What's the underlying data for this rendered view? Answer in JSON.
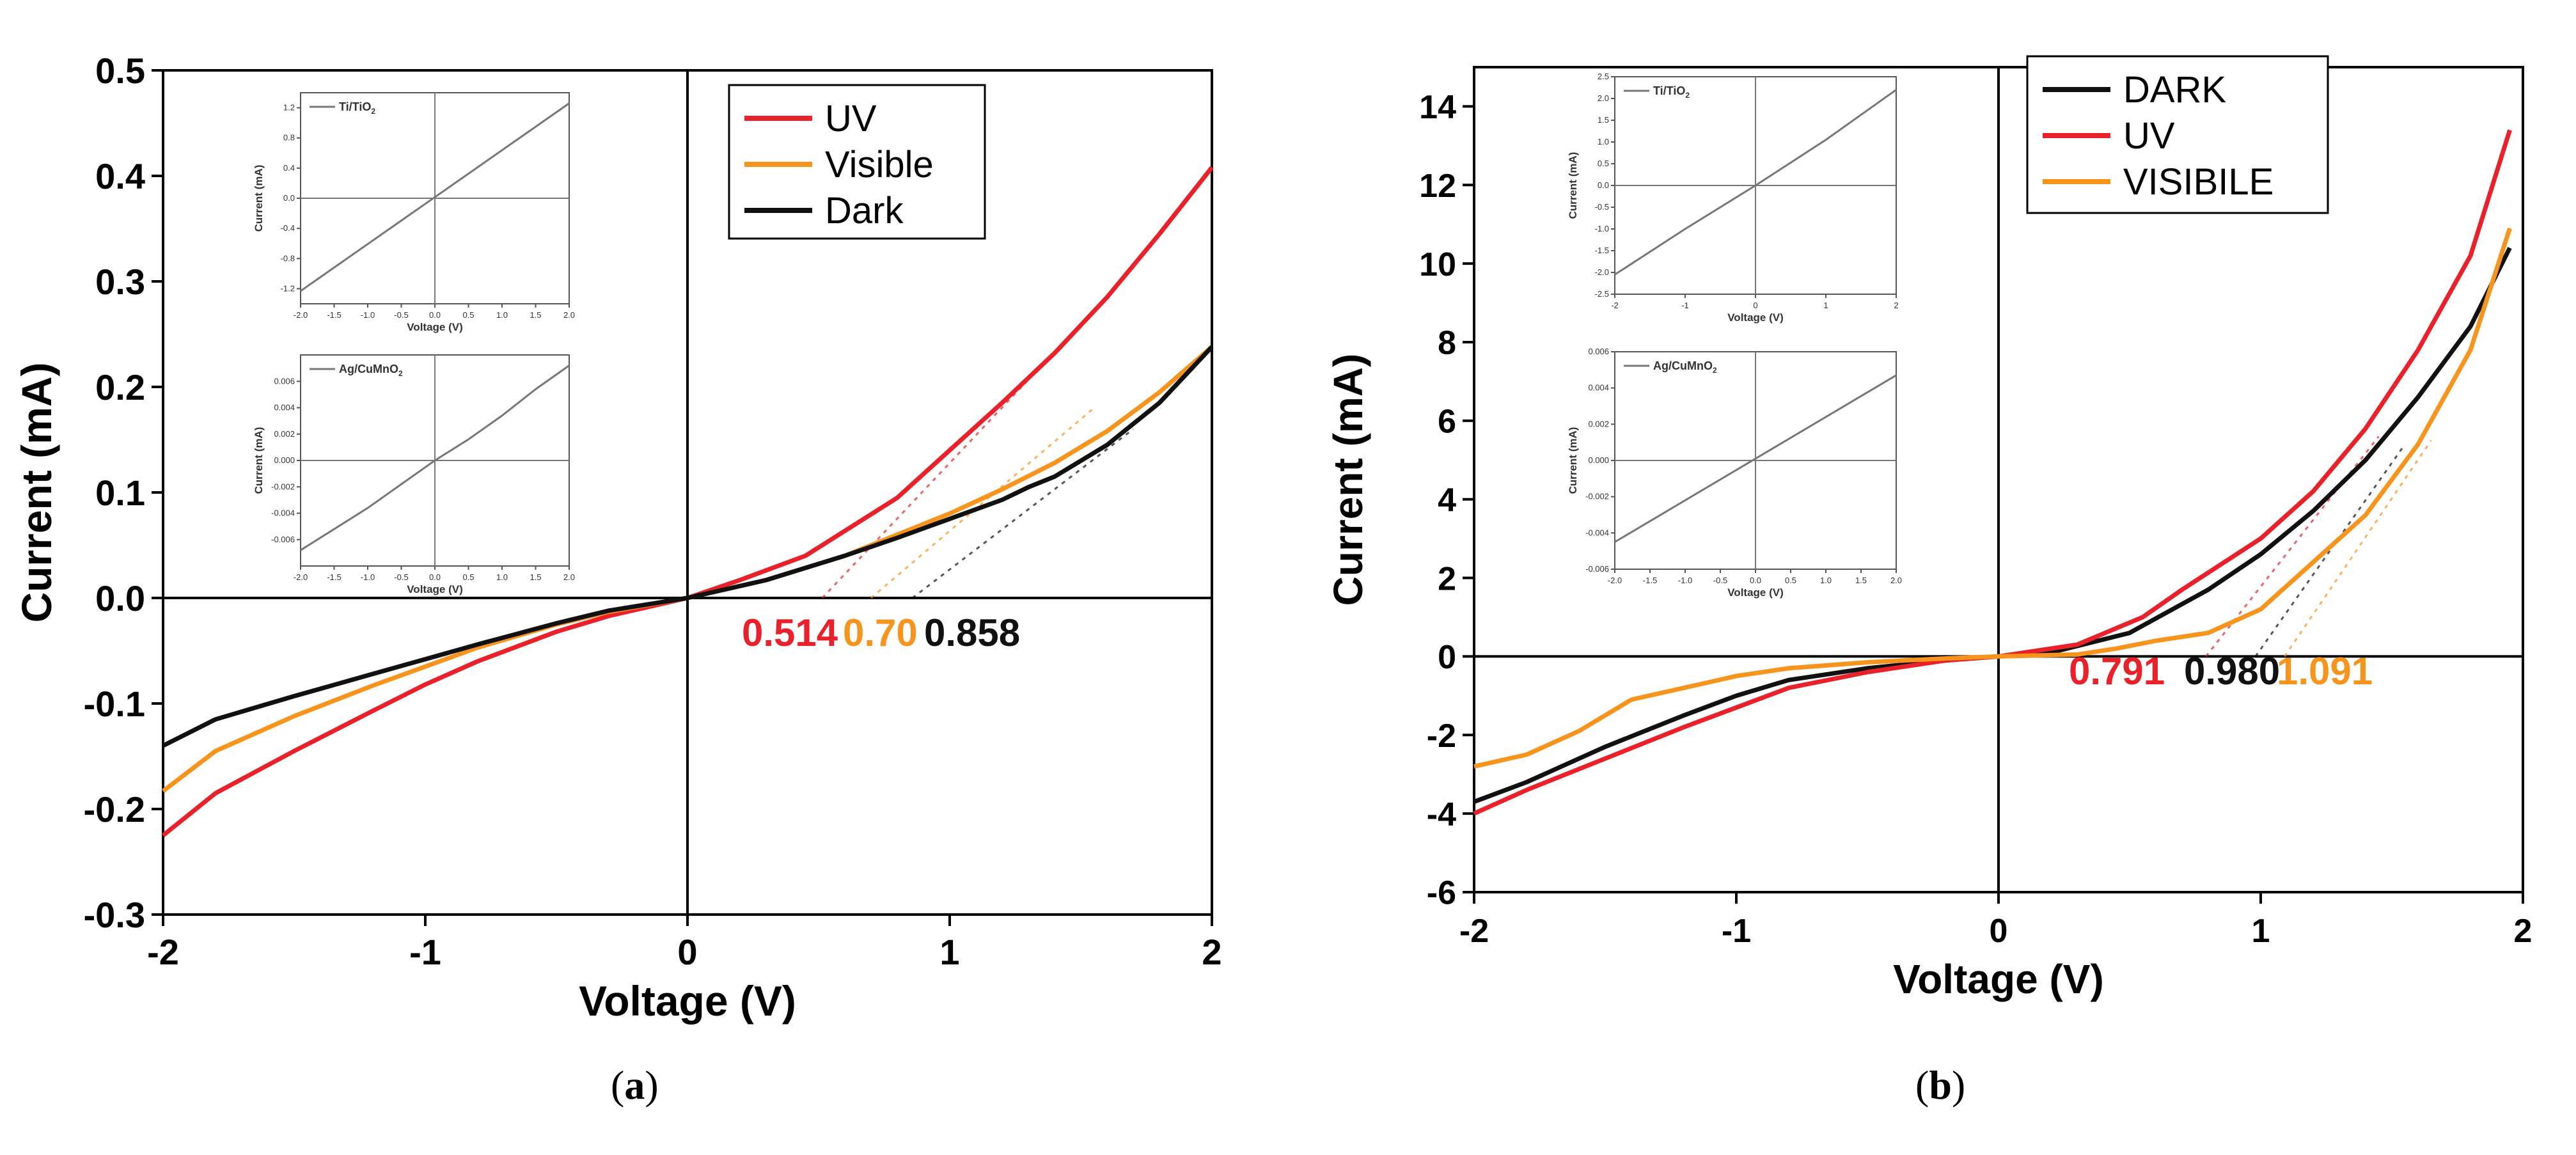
{
  "colors": {
    "uv": "#e8212b",
    "visible": "#f7941d",
    "dark": "#111111",
    "inset": "#777777"
  },
  "captions": {
    "a": "a",
    "b": "b"
  },
  "chart_data": [
    {
      "id": "a",
      "type": "line",
      "xlabel": "Voltage (V)",
      "ylabel": "Current (mA)",
      "xlim": [
        -2,
        2
      ],
      "ylim": [
        -0.3,
        0.5
      ],
      "xticks": [
        -2,
        -1,
        0,
        1,
        2
      ],
      "xtick_labels": [
        "-2",
        "-1",
        "0",
        "1",
        "2"
      ],
      "yticks": [
        -0.3,
        -0.2,
        -0.1,
        0,
        0.1,
        0.2,
        0.3,
        0.4,
        0.5
      ],
      "ytick_labels": [
        "-0.3",
        "-0.2",
        "-0.1",
        "0.0",
        "0.1",
        "0.2",
        "0.3",
        "0.4",
        "0.5"
      ],
      "legend_position": "top-right",
      "series": [
        {
          "name": "UV",
          "color_key": "uv",
          "x": [
            -2,
            -1.8,
            -1.5,
            -1.2,
            -1.0,
            -0.8,
            -0.5,
            -0.3,
            0,
            0.2,
            0.45,
            0.8,
            1.0,
            1.2,
            1.4,
            1.6,
            1.8,
            2.0
          ],
          "y": [
            -0.225,
            -0.185,
            -0.145,
            -0.107,
            -0.082,
            -0.06,
            -0.032,
            -0.017,
            0,
            0.017,
            0.04,
            0.095,
            0.14,
            0.185,
            0.232,
            0.285,
            0.345,
            0.408
          ]
        },
        {
          "name": "Visible",
          "color_key": "visible",
          "x": [
            -2,
            -1.8,
            -1.5,
            -1.2,
            -1.0,
            -0.8,
            -0.5,
            -0.3,
            0,
            0.3,
            0.6,
            0.8,
            1.0,
            1.2,
            1.4,
            1.6,
            1.8,
            2.0
          ],
          "y": [
            -0.183,
            -0.145,
            -0.112,
            -0.083,
            -0.065,
            -0.047,
            -0.025,
            -0.013,
            0,
            0.017,
            0.04,
            0.06,
            0.08,
            0.103,
            0.128,
            0.158,
            0.195,
            0.238
          ]
        },
        {
          "name": "Dark",
          "color_key": "dark",
          "x": [
            -2,
            -1.8,
            -1.5,
            -1.2,
            -1.0,
            -0.8,
            -0.5,
            -0.3,
            0,
            0.3,
            0.6,
            0.8,
            1.0,
            1.2,
            1.3,
            1.4,
            1.6,
            1.8,
            2.0
          ],
          "y": [
            -0.14,
            -0.115,
            -0.093,
            -0.072,
            -0.058,
            -0.044,
            -0.024,
            -0.012,
            0,
            0.017,
            0.04,
            0.057,
            0.075,
            0.093,
            0.105,
            0.115,
            0.145,
            0.185,
            0.238
          ]
        }
      ],
      "tangents": [
        {
          "color_key": "uv",
          "x0": 0.514,
          "x1": 1.35,
          "y1": 0.22
        },
        {
          "color_key": "visible",
          "x0": 0.7,
          "x1": 1.55,
          "y1": 0.18
        },
        {
          "color_key": "dark",
          "x0": 0.858,
          "x1": 1.7,
          "y1": 0.16
        }
      ],
      "annotations": [
        {
          "text": "0.514",
          "color_key": "uv"
        },
        {
          "text": "0.70",
          "color_key": "visible"
        },
        {
          "text": "0.858",
          "color_key": "dark"
        }
      ],
      "insets": [
        {
          "label": "Ti/TiO",
          "label_sub": "2",
          "xlabel": "Voltage (V)",
          "ylabel": "Current (mA)",
          "xlim": [
            -2,
            2
          ],
          "ylim": [
            -1.4,
            1.4
          ],
          "xticks": [
            -2,
            -1.5,
            -1,
            -0.5,
            0,
            0.5,
            1,
            1.5,
            2
          ],
          "xtick_labels": [
            "-2.0",
            "-1.5",
            "-1.0",
            "-0.5",
            "0.0",
            "0.5",
            "1.0",
            "1.5",
            "2.0"
          ],
          "yticks": [
            -1.2,
            -0.8,
            -0.4,
            0,
            0.4,
            0.8,
            1.2
          ],
          "ytick_labels": [
            "-1.2",
            "-0.8",
            "-0.4",
            "0.0",
            "0.4",
            "0.8",
            "1.2"
          ],
          "x": [
            -2,
            2
          ],
          "y": [
            -1.23,
            1.26
          ]
        },
        {
          "label": "Ag/CuMnO",
          "label_sub": "2",
          "xlabel": "Voltage (V)",
          "ylabel": "Current (mA)",
          "xlim": [
            -2,
            2
          ],
          "ylim": [
            -0.008,
            0.008
          ],
          "xticks": [
            -2,
            -1.5,
            -1,
            -0.5,
            0,
            0.5,
            1,
            1.5,
            2
          ],
          "xtick_labels": [
            "-2.0",
            "-1.5",
            "-1.0",
            "-0.5",
            "0.0",
            "0.5",
            "1.0",
            "1.5",
            "2.0"
          ],
          "yticks": [
            -0.006,
            -0.004,
            -0.002,
            0,
            0.002,
            0.004,
            0.006
          ],
          "ytick_labels": [
            "-0.006",
            "-0.004",
            "-0.002",
            "0.000",
            "0.002",
            "0.004",
            "0.006"
          ],
          "x": [
            -2,
            -1.5,
            -1,
            -0.5,
            0,
            0.5,
            1,
            1.5,
            2
          ],
          "y": [
            -0.0068,
            -0.0052,
            -0.0036,
            -0.0018,
            0,
            0.0016,
            0.0034,
            0.0054,
            0.0072
          ]
        }
      ]
    },
    {
      "id": "b",
      "type": "line",
      "xlabel": "Voltage (V)",
      "ylabel": "Current (mA)",
      "xlim": [
        -2,
        2
      ],
      "ylim": [
        -6,
        15
      ],
      "xticks": [
        -2,
        -1,
        0,
        1,
        2
      ],
      "xtick_labels": [
        "-2",
        "-1",
        "0",
        "1",
        "2"
      ],
      "yticks": [
        -6,
        -4,
        -2,
        0,
        2,
        4,
        6,
        8,
        10,
        12,
        14
      ],
      "ytick_labels": [
        "-6",
        "-4",
        "-2",
        "0",
        "2",
        "4",
        "6",
        "8",
        "10",
        "12",
        "14"
      ],
      "legend_position": "top-right",
      "series": [
        {
          "name": "DARK",
          "color_key": "dark",
          "x": [
            -2,
            -1.8,
            -1.5,
            -1.2,
            -1.0,
            -0.8,
            -0.5,
            -0.2,
            0,
            0.2,
            0.5,
            0.8,
            1.0,
            1.2,
            1.4,
            1.6,
            1.8,
            1.95
          ],
          "y": [
            -3.7,
            -3.2,
            -2.3,
            -1.5,
            -1.0,
            -0.6,
            -0.3,
            -0.1,
            0,
            0.1,
            0.6,
            1.7,
            2.6,
            3.7,
            5.0,
            6.6,
            8.4,
            10.4
          ]
        },
        {
          "name": "UV",
          "color_key": "uv",
          "x": [
            -2,
            -1.8,
            -1.5,
            -1.2,
            -1.0,
            -0.8,
            -0.5,
            -0.2,
            0,
            0.3,
            0.55,
            0.7,
            1.0,
            1.2,
            1.4,
            1.6,
            1.8,
            1.95
          ],
          "y": [
            -4.0,
            -3.4,
            -2.6,
            -1.8,
            -1.3,
            -0.8,
            -0.4,
            -0.1,
            0,
            0.3,
            1.0,
            1.7,
            3.0,
            4.2,
            5.8,
            7.8,
            10.2,
            13.4
          ]
        },
        {
          "name": "VISIBILE",
          "color_key": "visible",
          "x": [
            -2,
            -1.8,
            -1.6,
            -1.4,
            -1.2,
            -1.0,
            -0.8,
            -0.5,
            -0.2,
            0,
            0.3,
            0.45,
            0.6,
            0.8,
            1.0,
            1.1,
            1.2,
            1.4,
            1.6,
            1.8,
            1.95
          ],
          "y": [
            -2.8,
            -2.5,
            -1.9,
            -1.1,
            -0.8,
            -0.5,
            -0.3,
            -0.15,
            -0.05,
            0,
            0.05,
            0.2,
            0.4,
            0.6,
            1.2,
            1.8,
            2.4,
            3.6,
            5.4,
            7.8,
            10.9
          ]
        }
      ],
      "tangents": [
        {
          "color_key": "uv",
          "x0": 0.791,
          "x1": 1.45,
          "y1": 5.6
        },
        {
          "color_key": "dark",
          "x0": 0.98,
          "x1": 1.55,
          "y1": 5.4
        },
        {
          "color_key": "visible",
          "x0": 1.091,
          "x1": 1.65,
          "y1": 5.5
        }
      ],
      "annotations": [
        {
          "text": "0.791",
          "color_key": "uv"
        },
        {
          "text": "0.980",
          "color_key": "dark"
        },
        {
          "text": "1.091",
          "color_key": "visible"
        }
      ],
      "insets": [
        {
          "label": "Ti/TiO",
          "label_sub": "2",
          "xlabel": "Voltage (V)",
          "ylabel": "Current (mA)",
          "xlim": [
            -2,
            2
          ],
          "ylim": [
            -2.5,
            2.5
          ],
          "xticks": [
            -2,
            -1,
            0,
            1,
            2
          ],
          "xtick_labels": [
            "-2",
            "-1",
            "0",
            "1",
            "2"
          ],
          "yticks": [
            -2.5,
            -2,
            -1.5,
            -1,
            -0.5,
            0,
            0.5,
            1,
            1.5,
            2,
            2.5
          ],
          "ytick_labels": [
            "-2.5",
            "-2.0",
            "-1.5",
            "-1.0",
            "-0.5",
            "0.0",
            "0.5",
            "1.0",
            "1.5",
            "2.0",
            "2.5"
          ],
          "x": [
            -2,
            -1,
            0,
            1,
            2
          ],
          "y": [
            -2.05,
            -1.0,
            0,
            1.05,
            2.2
          ]
        },
        {
          "label": "Ag/CuMnO",
          "label_sub": "2",
          "xlabel": "Voltage (V)",
          "ylabel": "Current (mA)",
          "xlim": [
            -2,
            2
          ],
          "ylim": [
            -0.006,
            0.006
          ],
          "xticks": [
            -2,
            -1.5,
            -1,
            -0.5,
            0,
            0.5,
            1,
            1.5,
            2
          ],
          "xtick_labels": [
            "-2.0",
            "-1.5",
            "-1.0",
            "-0.5",
            "0.0",
            "0.5",
            "1.0",
            "1.5",
            "2.0"
          ],
          "yticks": [
            -0.006,
            -0.004,
            -0.002,
            0,
            0.002,
            0.004,
            0.006
          ],
          "ytick_labels": [
            "-0.006",
            "-0.004",
            "-0.002",
            "0.000",
            "0.002",
            "0.004",
            "0.006"
          ],
          "x": [
            -2,
            2
          ],
          "y": [
            -0.0045,
            0.0047
          ]
        }
      ]
    }
  ]
}
